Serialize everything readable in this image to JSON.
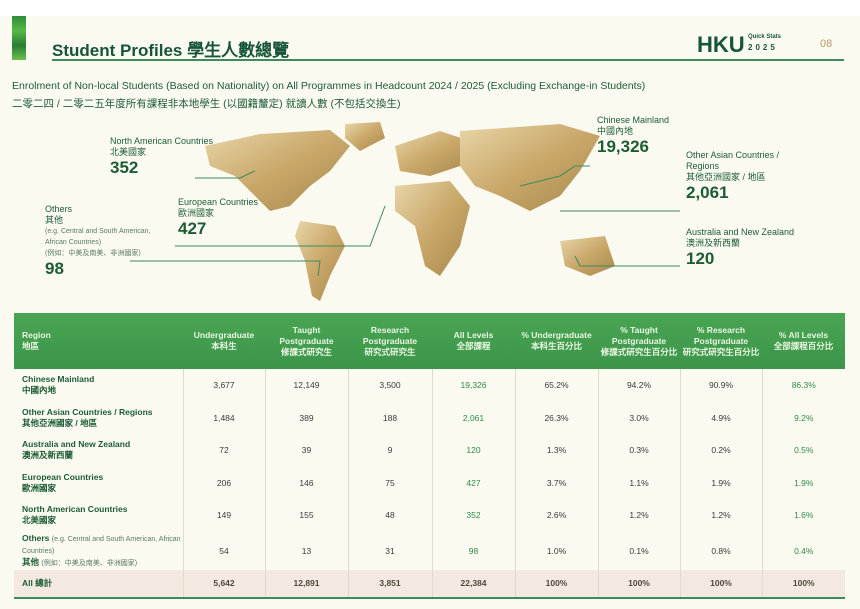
{
  "header": {
    "title": "Student Profiles 學生人數總覽",
    "brand": "HKU",
    "brand_sub": "Quick Stats",
    "brand_year": "2025",
    "page": "08"
  },
  "subtitle_en": "Enrolment of Non-local Students (Based on Nationality) on All Programmes in Headcount 2024 / 2025 (Excluding Exchange-in Students)",
  "subtitle_zh": "二零二四 / 二零二五年度所有課程非本地學生 (以國籍釐定) 就讀人數 (不包括交換生)",
  "map": {
    "na": {
      "en": "North American Countries",
      "zh": "北美國家",
      "value": "352"
    },
    "eu": {
      "en": "European Countries",
      "zh": "歐洲國家",
      "value": "427"
    },
    "others": {
      "en": "Others",
      "zh": "其他",
      "note_en": "(e.g. Central and South American, African Countries)",
      "note_zh": "(例如：中美及南美、非洲國家)",
      "value": "98"
    },
    "cn": {
      "en": "Chinese Mainland",
      "zh": "中國內地",
      "value": "19,326"
    },
    "asia": {
      "en": "Other Asian Countries / Regions",
      "zh": "其他亞洲國家 / 地區",
      "value": "2,061"
    },
    "au": {
      "en": "Australia and New Zealand",
      "zh": "澳洲及新西蘭",
      "value": "120"
    },
    "color": "#c9a86a"
  },
  "table": {
    "headers": [
      [
        "Region",
        "地區"
      ],
      [
        "Undergraduate",
        "本科生"
      ],
      [
        "Taught Postgraduate",
        "修課式研究生"
      ],
      [
        "Research Postgraduate",
        "研究式研究生"
      ],
      [
        "All Levels",
        "全部課程"
      ],
      [
        "% Undergraduate",
        "本科生百分比"
      ],
      [
        "% Taught Postgraduate",
        "修課式研究生百分比"
      ],
      [
        "% Research Postgraduate",
        "研究式研究生百分比"
      ],
      [
        "% All Levels",
        "全部課程百分比"
      ]
    ],
    "rows": [
      {
        "en": "Chinese Mainland",
        "zh": "中國內地",
        "v": [
          "3,677",
          "12,149",
          "3,500",
          "19,326",
          "65.2%",
          "94.2%",
          "90.9%",
          "86.3%"
        ]
      },
      {
        "en": "Other Asian Countries / Regions",
        "zh": "其他亞洲國家 / 地區",
        "v": [
          "1,484",
          "389",
          "188",
          "2,061",
          "26.3%",
          "3.0%",
          "4.9%",
          "9.2%"
        ]
      },
      {
        "en": "Australia and New Zealand",
        "zh": "澳洲及新西蘭",
        "v": [
          "72",
          "39",
          "9",
          "120",
          "1.3%",
          "0.3%",
          "0.2%",
          "0.5%"
        ]
      },
      {
        "en": "European Countries",
        "zh": "歐洲國家",
        "v": [
          "206",
          "146",
          "75",
          "427",
          "3.7%",
          "1.1%",
          "1.9%",
          "1.9%"
        ]
      },
      {
        "en": "North American Countries",
        "zh": "北美國家",
        "v": [
          "149",
          "155",
          "48",
          "352",
          "2.6%",
          "1.2%",
          "1.2%",
          "1.6%"
        ]
      },
      {
        "en": "Others",
        "note_en": "(e.g. Central and South American, African Countries)",
        "zh": "其他",
        "note_zh": "(例如：中美及南美、非洲國家)",
        "v": [
          "54",
          "13",
          "31",
          "98",
          "1.0%",
          "0.1%",
          "0.8%",
          "0.4%"
        ]
      }
    ],
    "total": {
      "label": "All 總計",
      "v": [
        "5,642",
        "12,891",
        "3,851",
        "22,384",
        "100%",
        "100%",
        "100%",
        "100%"
      ]
    }
  }
}
